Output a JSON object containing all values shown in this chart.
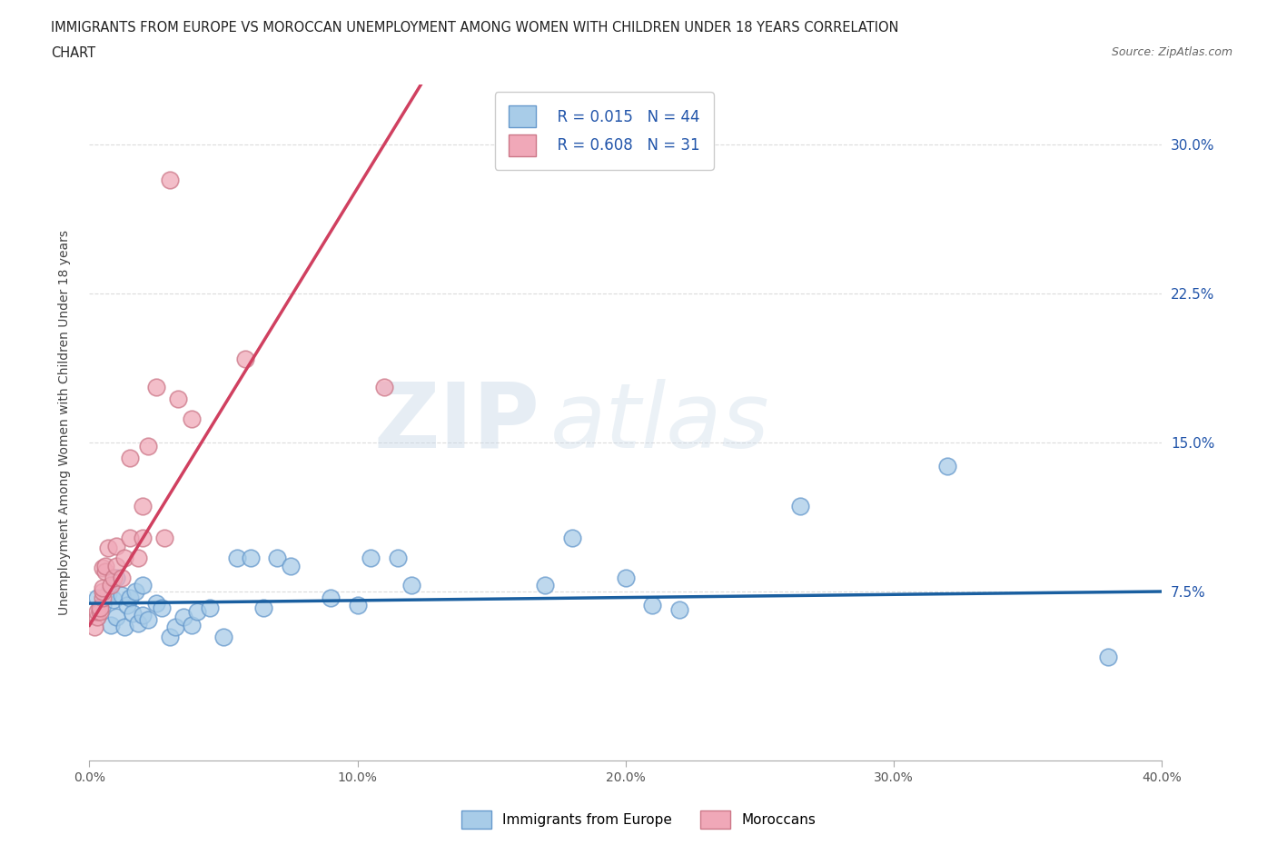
{
  "title_line1": "IMMIGRANTS FROM EUROPE VS MOROCCAN UNEMPLOYMENT AMONG WOMEN WITH CHILDREN UNDER 18 YEARS CORRELATION",
  "title_line2": "CHART",
  "source_text": "Source: ZipAtlas.com",
  "ylabel": "Unemployment Among Women with Children Under 18 years",
  "xlim": [
    0.0,
    0.4
  ],
  "ylim": [
    -0.01,
    0.33
  ],
  "yticks": [
    0.075,
    0.15,
    0.225,
    0.3
  ],
  "ytick_labels": [
    "7.5%",
    "15.0%",
    "22.5%",
    "30.0%"
  ],
  "xticks": [
    0.0,
    0.1,
    0.2,
    0.3,
    0.4
  ],
  "xtick_labels": [
    "0.0%",
    "10.0%",
    "20.0%",
    "30.0%",
    "40.0%"
  ],
  "blue_R": 0.015,
  "blue_N": 44,
  "pink_R": 0.608,
  "pink_N": 31,
  "blue_color": "#a8cce8",
  "pink_color": "#f0a8b8",
  "blue_edge_color": "#6699cc",
  "pink_edge_color": "#cc7788",
  "blue_line_color": "#1a5fa0",
  "pink_line_color": "#d04060",
  "legend_label_blue": "Immigrants from Europe",
  "legend_label_pink": "Moroccans",
  "watermark_zip": "ZIP",
  "watermark_atlas": "atlas",
  "grid_color": "#cccccc",
  "tick_color": "#2255aa",
  "title_color": "#222222",
  "blue_x": [
    0.003,
    0.005,
    0.007,
    0.008,
    0.009,
    0.01,
    0.01,
    0.012,
    0.013,
    0.014,
    0.015,
    0.016,
    0.017,
    0.018,
    0.02,
    0.02,
    0.022,
    0.025,
    0.027,
    0.03,
    0.032,
    0.035,
    0.038,
    0.04,
    0.045,
    0.05,
    0.055,
    0.06,
    0.065,
    0.07,
    0.075,
    0.09,
    0.1,
    0.105,
    0.115,
    0.12,
    0.17,
    0.18,
    0.2,
    0.21,
    0.22,
    0.265,
    0.32,
    0.38
  ],
  "blue_y": [
    0.072,
    0.068,
    0.074,
    0.058,
    0.071,
    0.062,
    0.082,
    0.073,
    0.057,
    0.068,
    0.072,
    0.064,
    0.075,
    0.059,
    0.063,
    0.078,
    0.061,
    0.069,
    0.067,
    0.052,
    0.057,
    0.062,
    0.058,
    0.065,
    0.067,
    0.052,
    0.092,
    0.092,
    0.067,
    0.092,
    0.088,
    0.072,
    0.068,
    0.092,
    0.092,
    0.078,
    0.078,
    0.102,
    0.082,
    0.068,
    0.066,
    0.118,
    0.138,
    0.042
  ],
  "pink_x": [
    0.002,
    0.003,
    0.003,
    0.004,
    0.004,
    0.005,
    0.005,
    0.005,
    0.005,
    0.006,
    0.006,
    0.007,
    0.008,
    0.009,
    0.01,
    0.01,
    0.012,
    0.013,
    0.015,
    0.015,
    0.018,
    0.02,
    0.02,
    0.022,
    0.025,
    0.028,
    0.03,
    0.033,
    0.038,
    0.058,
    0.11
  ],
  "pink_y": [
    0.057,
    0.062,
    0.065,
    0.065,
    0.067,
    0.072,
    0.075,
    0.077,
    0.087,
    0.085,
    0.088,
    0.097,
    0.078,
    0.082,
    0.088,
    0.098,
    0.082,
    0.092,
    0.102,
    0.142,
    0.092,
    0.102,
    0.118,
    0.148,
    0.178,
    0.102,
    0.282,
    0.172,
    0.162,
    0.192,
    0.178
  ],
  "blue_trend_x": [
    0.0,
    0.4
  ],
  "blue_trend_slope": 0.015,
  "blue_trend_intercept": 0.069,
  "pink_trend_x": [
    0.0,
    0.135
  ],
  "pink_trend_slope": 2.2,
  "pink_trend_intercept": 0.058
}
